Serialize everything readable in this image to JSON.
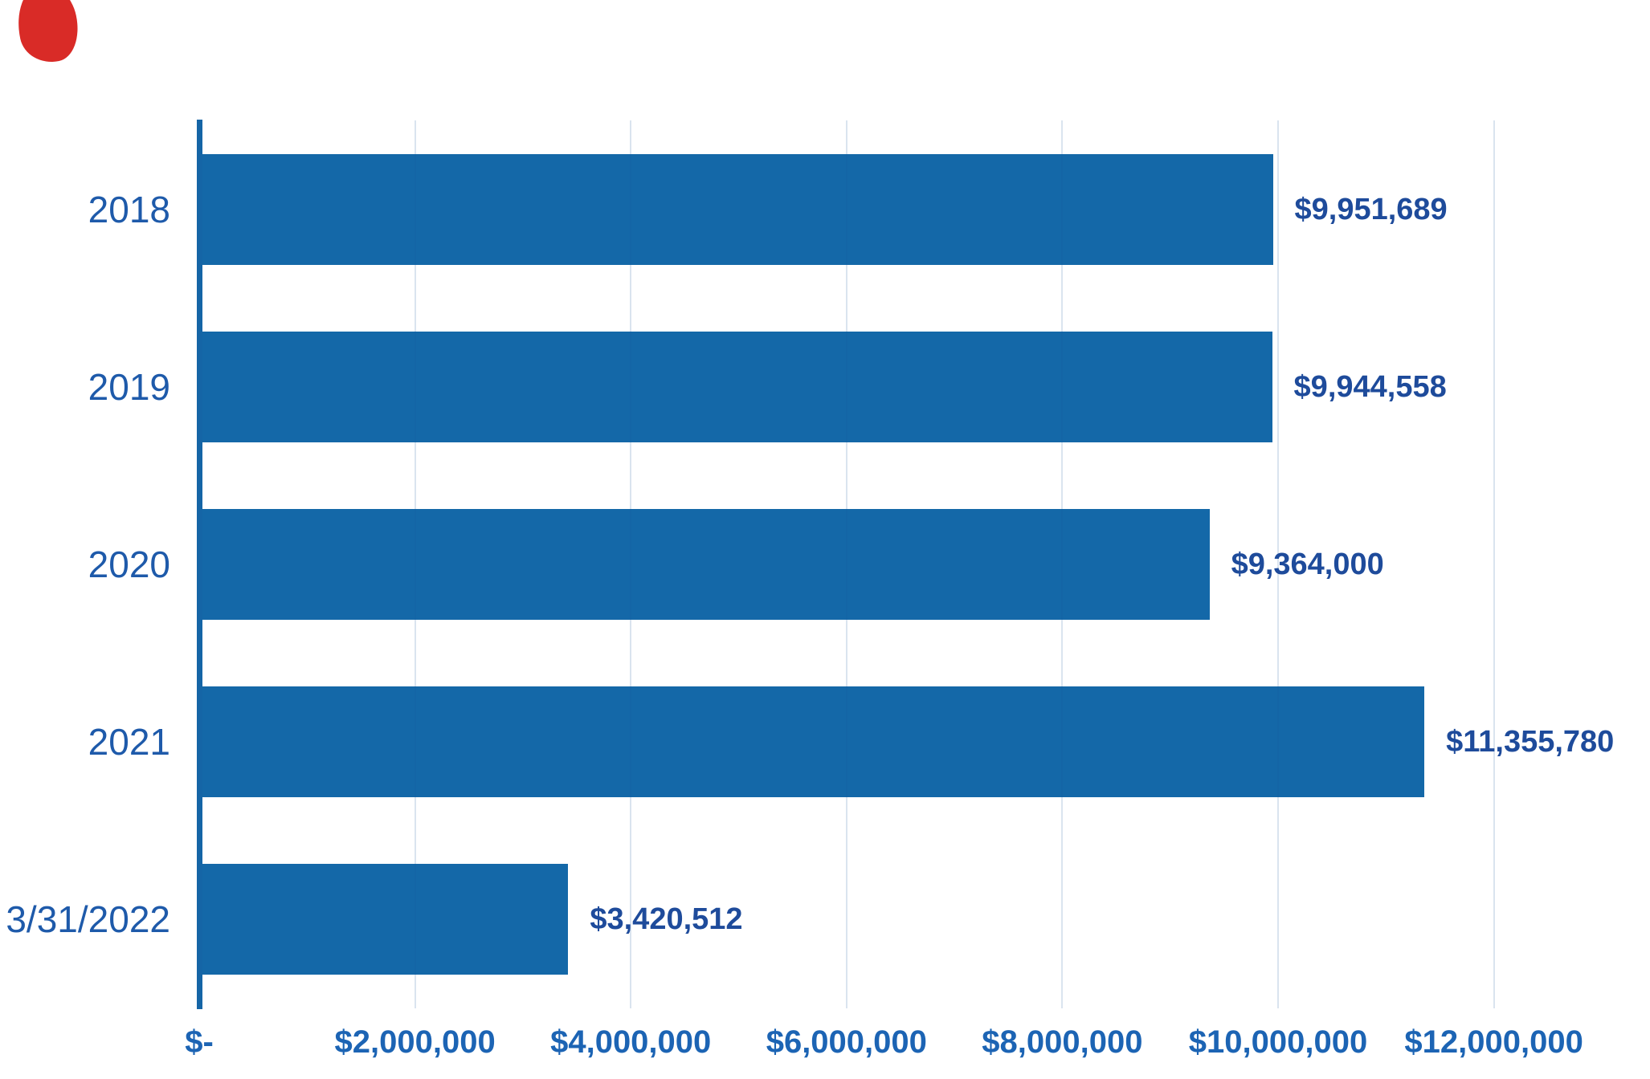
{
  "chart_data": {
    "type": "bar",
    "orientation": "horizontal",
    "title": "",
    "categories": [
      "2018",
      "2019",
      "2020",
      "2021",
      "3/31/2022"
    ],
    "values": [
      9951689,
      9944558,
      9364000,
      11355780,
      3420512
    ],
    "value_labels": [
      "$9,951,689",
      "$9,944,558",
      "$9,364,000",
      "$11,355,780",
      "$3,420,512"
    ],
    "series": [
      {
        "name": "Amount",
        "values": [
          9951689,
          9944558,
          9364000,
          11355780,
          3420512
        ]
      }
    ],
    "x_ticks": [
      {
        "label": "$-",
        "value": 0
      },
      {
        "label": "$2,000,000",
        "value": 2000000
      },
      {
        "label": "$4,000,000",
        "value": 4000000
      },
      {
        "label": "$6,000,000",
        "value": 6000000
      },
      {
        "label": "$8,000,000",
        "value": 8000000
      },
      {
        "label": "$10,000,000",
        "value": 10000000
      },
      {
        "label": "$12,000,000",
        "value": 12000000
      }
    ],
    "xlabel": "",
    "ylabel": "",
    "xlim": [
      0,
      12000000
    ],
    "grid": "vertical gridlines at $2,000,000 intervals",
    "legend": "none",
    "colors": {
      "bar": "#1468A8",
      "axis_line": "#1565A6",
      "gridline_rgba": "rgba(25, 90, 155, 0.16)",
      "category_label": "#1E5AAA",
      "value_label": "#1E4B9B",
      "tick_label": "#1C64B4",
      "corner_mark": "#D92B27"
    }
  }
}
